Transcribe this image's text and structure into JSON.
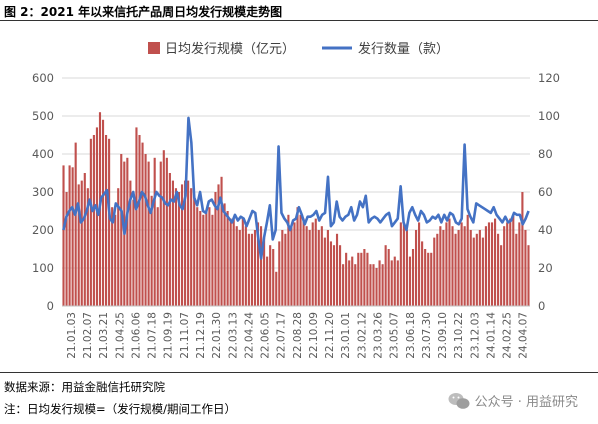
{
  "figure_title": "图 2：2021 年以来信托产品周日均发行规模走势图",
  "notes": {
    "source": "数据来源：用益金融信托研究院",
    "footnote": "注：日均发行规模=（发行规模/期间工作日）"
  },
  "watermark": "公众号 · 用益研究",
  "colors": {
    "bar": "#c0504d",
    "line": "#4472c4",
    "axis_text": "#595959",
    "grid": "#d9d9d9"
  },
  "chart_data": {
    "type": "bar+line",
    "legend_position": "top-center",
    "grid": true,
    "x_tick_labels": [
      "21.01.03",
      "21.02.07",
      "21.03.21",
      "21.04.25",
      "21.06.06",
      "21.07.18",
      "21.09.19",
      "21.11.07",
      "21.12.19",
      "22.01.30",
      "22.03.13",
      "22.04.24",
      "22.06.05",
      "22.07.17",
      "22.08.28",
      "22.10.09",
      "22.11.20",
      "23.01.01",
      "23.02.12",
      "23.03.26",
      "23.05.07",
      "23.06.18",
      "23.07.30",
      "23.09.10",
      "23.10.22",
      "23.12.03",
      "24.01.14",
      "24.02.25",
      "24.04.07"
    ],
    "y_left": {
      "label": "",
      "ticks": [
        0,
        100,
        200,
        300,
        400,
        500,
        600
      ],
      "range": [
        0,
        600
      ]
    },
    "y_right": {
      "label": "",
      "ticks": [
        0,
        20,
        40,
        60,
        80,
        100,
        120
      ],
      "range": [
        0,
        120
      ]
    },
    "series": [
      {
        "name": "日均发行规模（亿元）",
        "type": "bar",
        "axis": "left",
        "values": [
          370,
          300,
          370,
          365,
          430,
          320,
          330,
          350,
          310,
          440,
          450,
          470,
          510,
          490,
          450,
          440,
          260,
          240,
          310,
          400,
          380,
          390,
          330,
          280,
          470,
          450,
          430,
          400,
          380,
          290,
          390,
          260,
          380,
          410,
          390,
          350,
          330,
          310,
          300,
          320,
          330,
          330,
          310,
          290,
          260,
          250,
          240,
          250,
          260,
          240,
          300,
          320,
          340,
          270,
          250,
          230,
          230,
          210,
          200,
          230,
          210,
          190,
          190,
          200,
          220,
          210,
          180,
          130,
          160,
          150,
          90,
          170,
          200,
          190,
          240,
          210,
          220,
          260,
          240,
          230,
          210,
          200,
          220,
          230,
          200,
          210,
          180,
          200,
          170,
          160,
          190,
          160,
          110,
          140,
          120,
          130,
          110,
          140,
          140,
          150,
          140,
          110,
          110,
          100,
          120,
          110,
          160,
          150,
          120,
          130,
          120,
          220,
          220,
          200,
          130,
          150,
          200,
          220,
          170,
          150,
          140,
          140,
          180,
          190,
          210,
          200,
          220,
          230,
          210,
          190,
          200,
          220,
          210,
          240,
          200,
          180,
          190,
          200,
          180,
          210,
          220,
          220,
          230,
          190,
          160,
          210,
          220,
          230,
          240,
          190,
          220,
          300,
          200,
          160
        ]
      },
      {
        "name": "发行数量（款）",
        "type": "line",
        "axis": "right",
        "values": [
          40,
          47,
          50,
          52,
          48,
          54,
          44,
          46,
          50,
          56,
          50,
          53,
          48,
          57,
          59,
          61,
          46,
          44,
          54,
          52,
          50,
          38,
          49,
          56,
          60,
          51,
          55,
          60,
          58,
          53,
          49,
          55,
          60,
          58,
          57,
          54,
          53,
          56,
          55,
          60,
          53,
          51,
          58,
          99,
          86,
          57,
          53,
          60,
          50,
          49,
          55,
          56,
          53,
          51,
          57,
          50,
          48,
          46,
          44,
          48,
          45,
          47,
          46,
          42,
          46,
          50,
          49,
          36,
          25,
          36,
          44,
          53,
          35,
          40,
          84,
          49,
          46,
          44,
          40,
          45,
          46,
          52,
          48,
          43,
          47,
          47,
          48,
          50,
          45,
          48,
          49,
          68,
          42,
          44,
          55,
          47,
          45,
          47,
          48,
          52,
          45,
          48,
          55,
          52,
          58,
          44,
          46,
          47,
          46,
          44,
          46,
          48,
          49,
          42,
          44,
          46,
          63,
          44,
          40,
          49,
          52,
          48,
          45,
          50,
          48,
          44,
          45,
          47,
          46,
          48,
          44,
          48,
          45,
          49,
          48,
          44,
          43,
          46,
          85,
          51,
          47,
          44,
          54,
          53,
          52,
          51,
          50,
          49,
          52,
          48,
          46,
          44,
          47,
          44,
          45,
          49,
          48,
          48,
          43,
          46,
          50
        ]
      }
    ]
  }
}
